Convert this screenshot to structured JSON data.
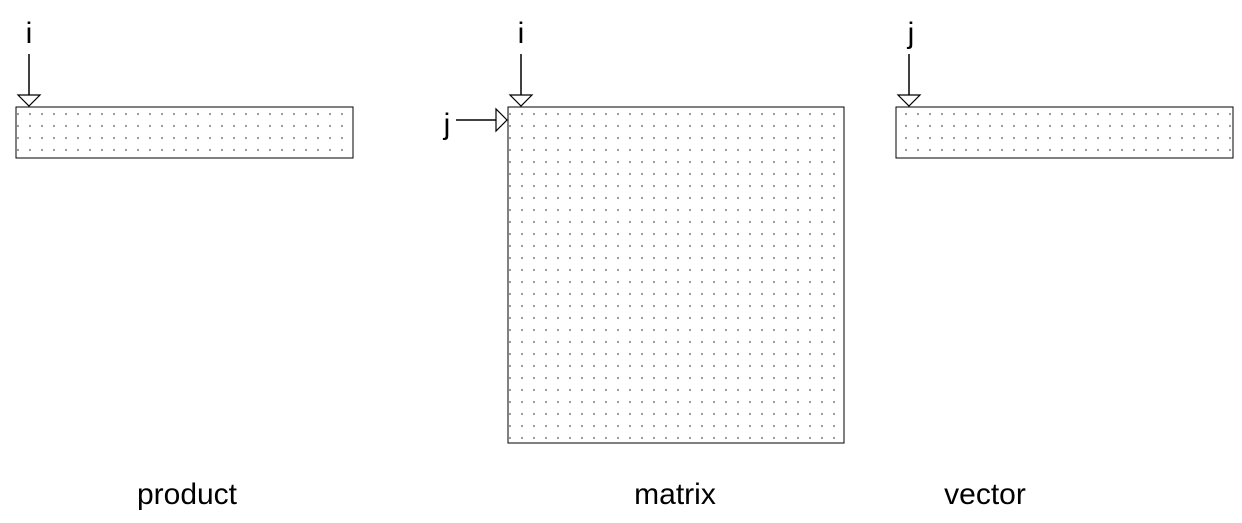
{
  "diagram": {
    "product": {
      "caption": "product",
      "index_label": "i"
    },
    "matrix": {
      "caption": "matrix",
      "col_index_label": "i",
      "row_index_label": "j"
    },
    "vector": {
      "caption": "vector",
      "index_label": "j"
    }
  }
}
